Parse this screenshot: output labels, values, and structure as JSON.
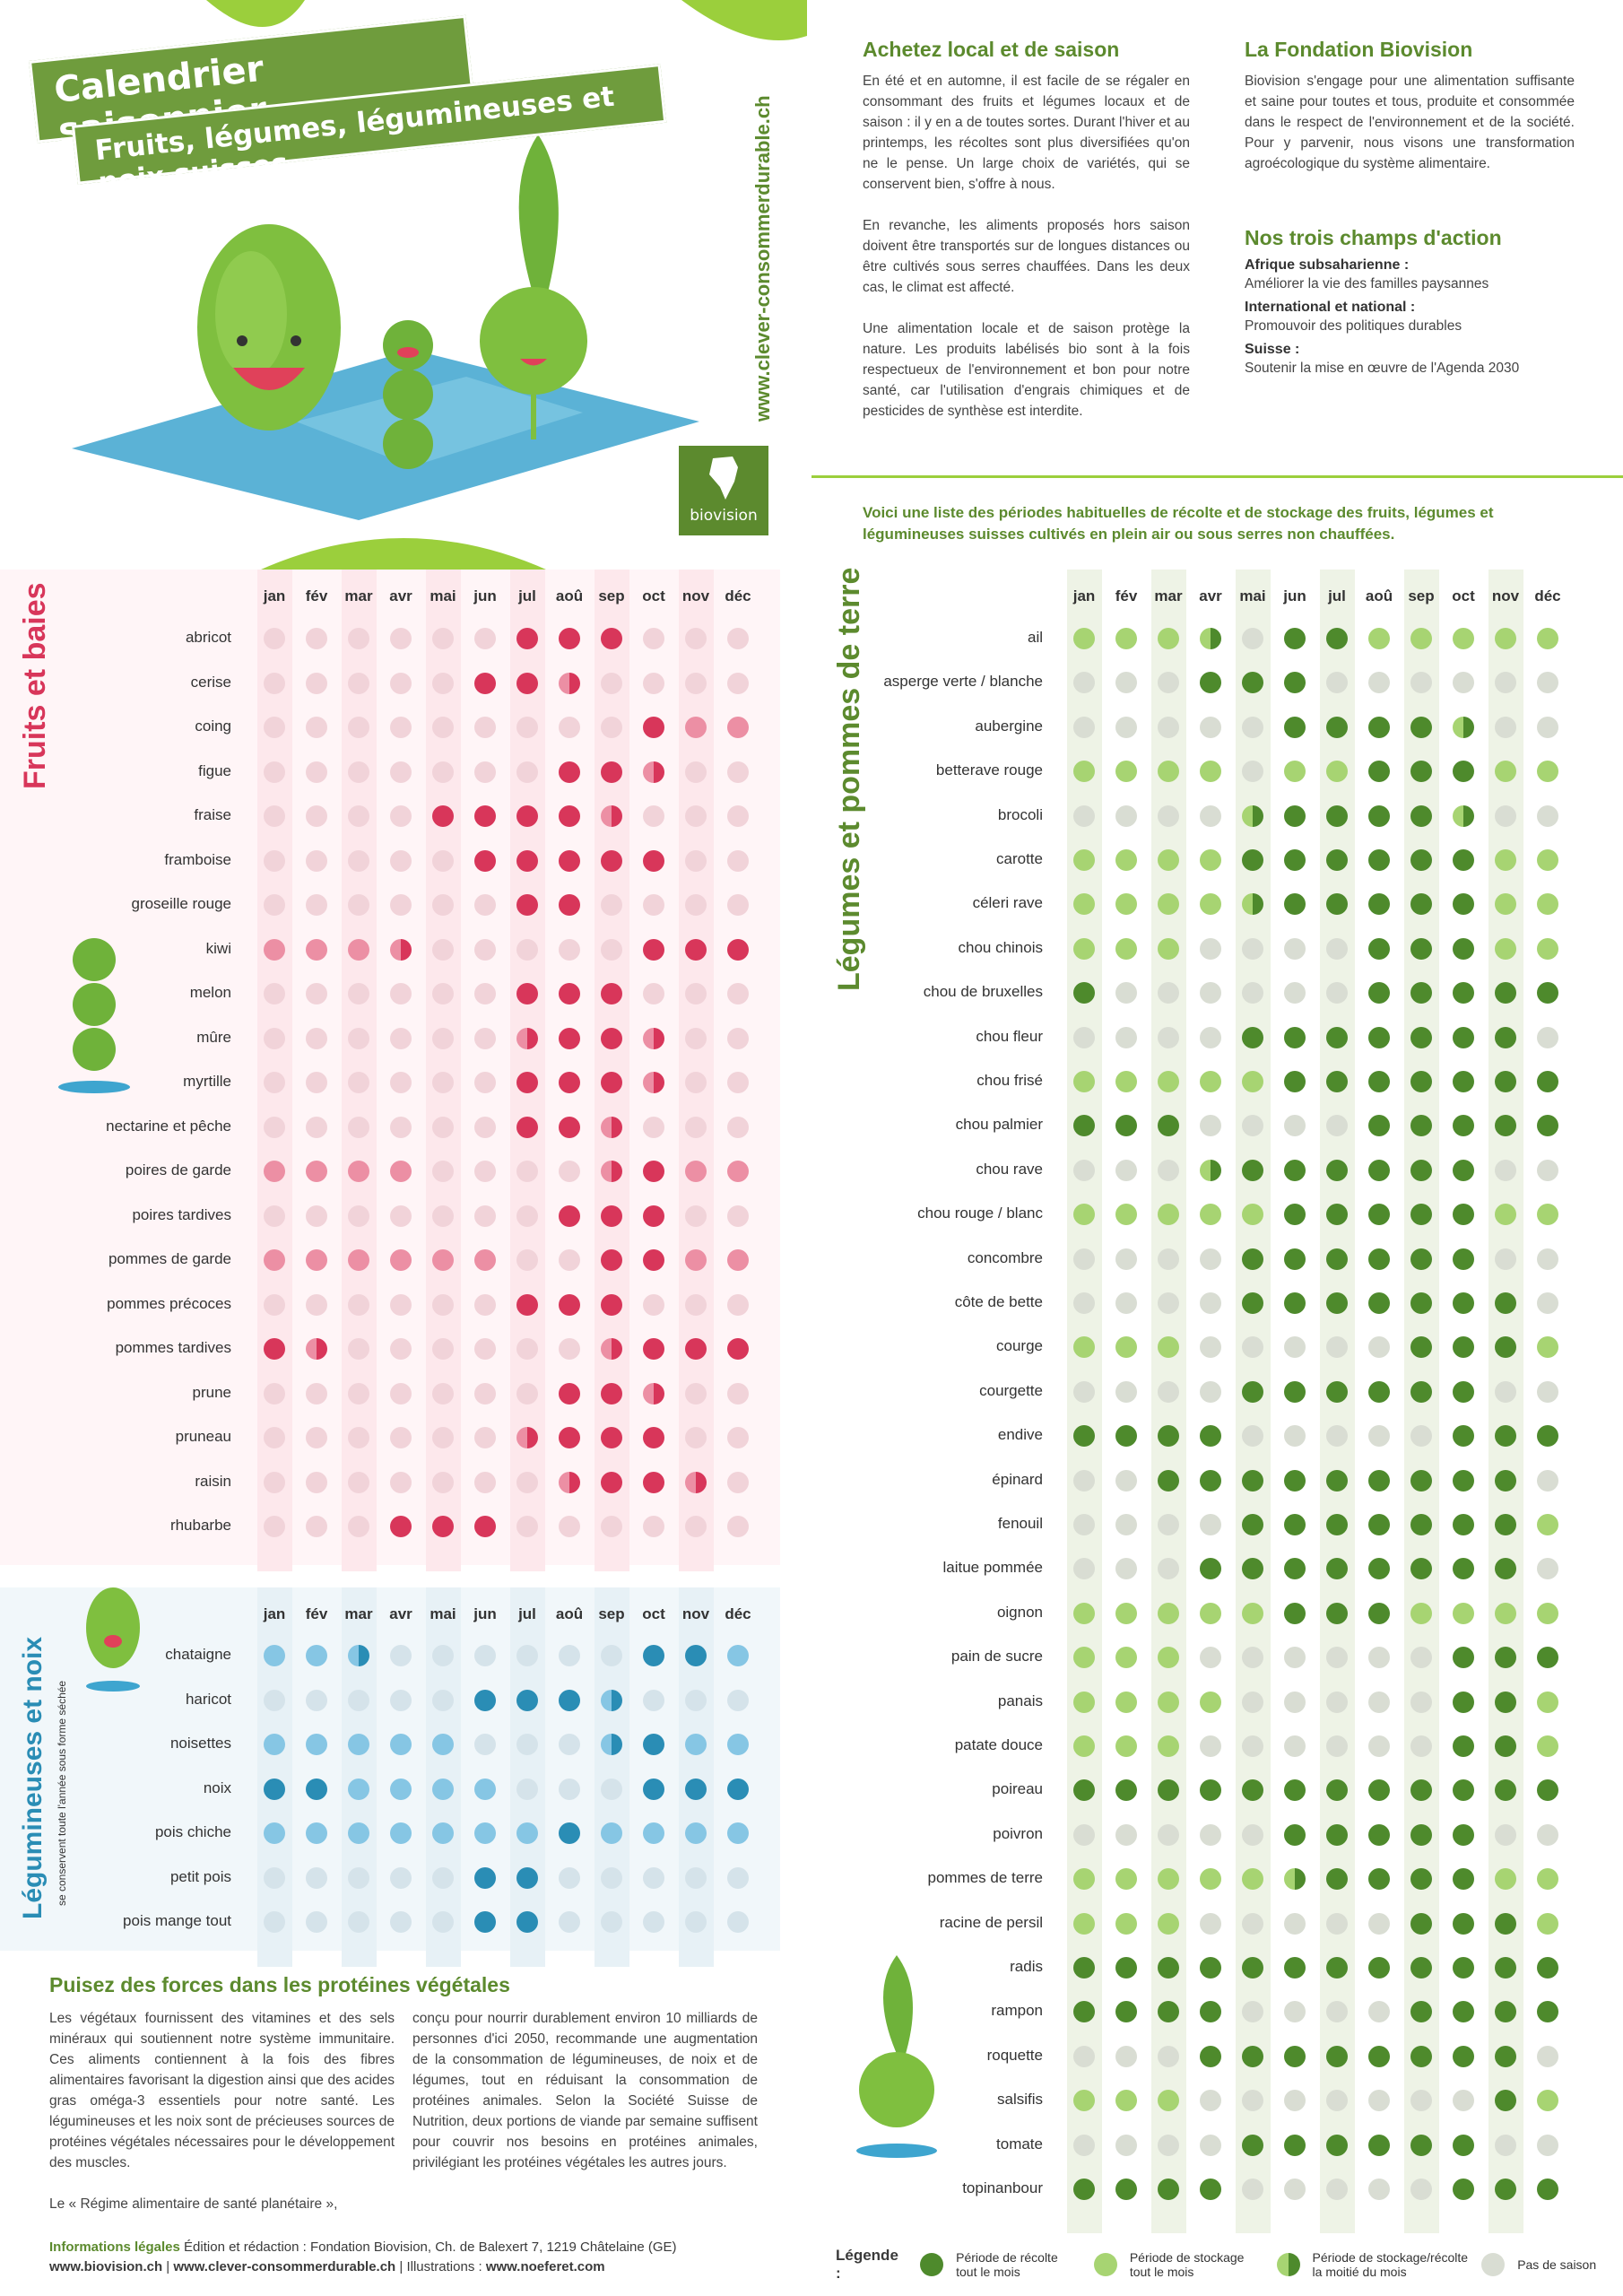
{
  "header": {
    "title": "Calendrier saisonnier",
    "subtitle": "Fruits, légumes, légumineuses et noix suisses",
    "vertical_url": "www.clever-consommerdurable.ch",
    "logo_text": "biovision"
  },
  "local": {
    "heading": "Achetez local et de saison",
    "p1": "En été et en automne, il est facile de se régaler en consommant des fruits et légumes locaux et de saison : il y en a de toutes sortes. Durant l'hiver et au printemps, les récoltes sont plus diversifiées qu'on ne le pense. Un large choix de variétés, qui se conservent bien, s'offre à nous.",
    "p2": "En revanche, les aliments proposés hors saison doivent être transportés sur de longues distances ou être cultivés sous serres chauffées. Dans les deux cas, le climat est affecté.",
    "p3": "Une alimentation locale et de saison protège la nature. Les produits labélisés bio sont à la fois respectueux de l'environnement et bon pour notre santé, car l'utilisation d'engrais chimiques et de pesticides de synthèse est interdite."
  },
  "fondation": {
    "heading": "La Fondation Biovision",
    "p1": "Biovision s'engage pour une alimentation suffisante et saine pour toutes et tous, produite et consommée dans le respect de l'environnement et de la société. Pour y parvenir, nous visons une transformation agroécologique du système alimentaire."
  },
  "champs": {
    "heading": "Nos trois champs d'action",
    "items": [
      {
        "label": "Afrique subsaharienne :",
        "text": "Améliorer la vie des familles paysannes"
      },
      {
        "label": "International et national :",
        "text": "Promouvoir des politiques durables"
      },
      {
        "label": "Suisse :",
        "text": "Soutenir la mise en œuvre de l'Agenda 2030"
      }
    ]
  },
  "intro": "Voici une liste des périodes habituelles de récolte et de stockage des fruits, légumes et légumineuses suisses cultivés en plein air ou sous serres non chauffées.",
  "months": [
    "jan",
    "fév",
    "mar",
    "avr",
    "mai",
    "jun",
    "jul",
    "aoû",
    "sep",
    "oct",
    "nov",
    "déc"
  ],
  "fruits": {
    "section_title": "Fruits et baies",
    "colors": {
      "harvest": "#d8365a",
      "storage": "#ec8fa4",
      "off": "#f1d3d9",
      "band": "#fde8ec"
    },
    "rows": [
      {
        "name": "abricot",
        "s": "000000HHH000"
      },
      {
        "name": "cerise",
        "s": "00000HHh0000"
      },
      {
        "name": "coing",
        "s": "000000000HSS"
      },
      {
        "name": "figue",
        "s": "0000000HHh00"
      },
      {
        "name": "fraise",
        "s": "0000HHHHh000"
      },
      {
        "name": "framboise",
        "s": "00000HHHHH00"
      },
      {
        "name": "groseille rouge",
        "s": "000000HH0000"
      },
      {
        "name": "kiwi",
        "s": "SSSh00000HHH"
      },
      {
        "name": "melon",
        "s": "000000HHH000"
      },
      {
        "name": "mûre",
        "s": "000000hHHh00"
      },
      {
        "name": "myrtille",
        "s": "000000HHHh00"
      },
      {
        "name": "nectarine et pêche",
        "s": "000000HHh000"
      },
      {
        "name": "poires de garde",
        "s": "SSSS0000hHSS"
      },
      {
        "name": "poires tardives",
        "s": "0000000HHH00"
      },
      {
        "name": "pommes de garde",
        "s": "SSSSSS00HHSS"
      },
      {
        "name": "pommes précoces",
        "s": "000000HHH000"
      },
      {
        "name": "pommes tardives",
        "s": "Hh000000hHHH"
      },
      {
        "name": "prune",
        "s": "0000000HHh00"
      },
      {
        "name": "pruneau",
        "s": "000000hHHH00"
      },
      {
        "name": "raisin",
        "s": "0000000hHHh0"
      },
      {
        "name": "rhubarbe",
        "s": "000HHH000000"
      }
    ]
  },
  "legumineuses": {
    "section_title": "Légumineuses et noix",
    "section_sub": "se conservent toute l'année sous forme séchée",
    "colors": {
      "harvest": "#2a8db5",
      "storage": "#86c6e4",
      "off": "#d5e3ea",
      "band": "#e7f1f6"
    },
    "rows": [
      {
        "name": "chataigne",
        "s": "SSh000000HHS"
      },
      {
        "name": "haricot",
        "s": "00000HHHh000"
      },
      {
        "name": "noisettes",
        "s": "SSSSS000hHSS"
      },
      {
        "name": "noix",
        "s": "HHSSSS000HHH"
      },
      {
        "name": "pois chiche",
        "s": "SSSSSSSHSSSS"
      },
      {
        "name": "petit pois",
        "s": "00000HH00000"
      },
      {
        "name": "pois mange tout",
        "s": "00000HH00000"
      }
    ]
  },
  "legumes": {
    "section_title": "Légumes et pommes de terre",
    "colors": {
      "harvest": "#4e8a2c",
      "storage": "#a7d472",
      "off": "#d9ddd3",
      "band": "#eef3e6"
    },
    "rows": [
      {
        "name": "ail",
        "s": "SSSh0HHSSSSS"
      },
      {
        "name": "asperge verte / blanche",
        "s": "000HHH000000"
      },
      {
        "name": "aubergine",
        "s": "00000HHHHh00"
      },
      {
        "name": "betterave rouge",
        "s": "SSSS0SSHHHSS"
      },
      {
        "name": "brocoli",
        "s": "0000hHHHHh00"
      },
      {
        "name": "carotte",
        "s": "SSSSHHHHHHSS"
      },
      {
        "name": "céleri rave",
        "s": "SSSShHHHHHSS"
      },
      {
        "name": "chou chinois",
        "s": "SSS0000HHHSS"
      },
      {
        "name": "chou de bruxelles",
        "s": "H000000HHHHH"
      },
      {
        "name": "chou fleur",
        "s": "0000HHHHHHH0"
      },
      {
        "name": "chou frisé",
        "s": "SSSSSHHHHHHH"
      },
      {
        "name": "chou palmier",
        "s": "HHH0000HHHHH"
      },
      {
        "name": "chou rave",
        "s": "000hHHHHHH00"
      },
      {
        "name": "chou rouge / blanc",
        "s": "SSSSSHHHHHSS"
      },
      {
        "name": "concombre",
        "s": "0000HHHHHH00"
      },
      {
        "name": "côte de bette",
        "s": "0000HHHHHHH0"
      },
      {
        "name": "courge",
        "s": "SSS00000HHHS"
      },
      {
        "name": "courgette",
        "s": "0000HHHHHH00"
      },
      {
        "name": "endive",
        "s": "HHHH00000HHH"
      },
      {
        "name": "épinard",
        "s": "00HHHHHHHHH0"
      },
      {
        "name": "fenouil",
        "s": "0000HHHHHHHS"
      },
      {
        "name": "laitue pommée",
        "s": "000HHHHHHHH0"
      },
      {
        "name": "oignon",
        "s": "SSSSSHHHSSSS"
      },
      {
        "name": "pain de sucre",
        "s": "SSS000000HHH"
      },
      {
        "name": "panais",
        "s": "SSSS00000HHS"
      },
      {
        "name": "patate douce",
        "s": "SSS000000HHS"
      },
      {
        "name": "poireau",
        "s": "HHHHHHHHHHHH"
      },
      {
        "name": "poivron",
        "s": "00000HHHHH00"
      },
      {
        "name": "pommes de terre",
        "s": "SSSSShHHHHSS"
      },
      {
        "name": "racine de persil",
        "s": "SSS00000HHHS"
      },
      {
        "name": "radis",
        "s": "HHHHHHHHHHHH"
      },
      {
        "name": "rampon",
        "s": "HHHH0000HHHH"
      },
      {
        "name": "roquette",
        "s": "000HHHHHHHH0"
      },
      {
        "name": "salsifis",
        "s": "SSS0000000HS"
      },
      {
        "name": "tomate",
        "s": "0000HHHHHH00"
      },
      {
        "name": "topinanbour",
        "s": "HHHH00000HHH"
      }
    ]
  },
  "proteines": {
    "heading": "Puisez des forces dans les protéines végétales",
    "col1": "Les végétaux fournissent des vitamines et des sels minéraux qui soutiennent notre système immunitaire. Ces aliments contiennent à la fois des fibres alimentaires favorisant la digestion ainsi que des acides gras oméga-3 essentiels pour notre santé. Les légumineuses et les noix sont de précieuses sources de protéines végétales nécessaires pour le développement des muscles.",
    "col1b": "Le « Régime alimentaire de santé planétaire »,",
    "col2": "conçu pour nourrir durablement environ 10 milliards de personnes d'ici 2050, recommande une augmentation de la consommation de légumineuses, de noix et de légumes, tout en réduisant la consommation de protéines animales. Selon la Société Suisse de Nutrition, deux portions de viande par semaine suffisent pour couvrir nos besoins en protéines animales, privilégiant les protéines végétales les autres jours."
  },
  "footer": {
    "legal_label": "Informations légales",
    "legal_text": "Édition et rédaction : Fondation Biovision, Ch. de Balexert 7, 1219 Châtelaine (GE)",
    "url1": "www.biovision.ch",
    "url2": "www.clever-consommerdurable.ch",
    "illus_label": "Illustrations :",
    "url3": "www.noeferet.com"
  },
  "legend": {
    "title": "Légende :",
    "items": [
      {
        "key": "H",
        "color": "#4e8a2c",
        "label": "Période de récolte tout le mois"
      },
      {
        "key": "S",
        "color": "#a7d472",
        "label": "Période de stockage tout le mois"
      },
      {
        "key": "h",
        "color": "half",
        "label": "Période de stockage/récolte la moitié du mois"
      },
      {
        "key": "0",
        "color": "#d9ddd3",
        "label": "Pas de saison"
      }
    ]
  }
}
